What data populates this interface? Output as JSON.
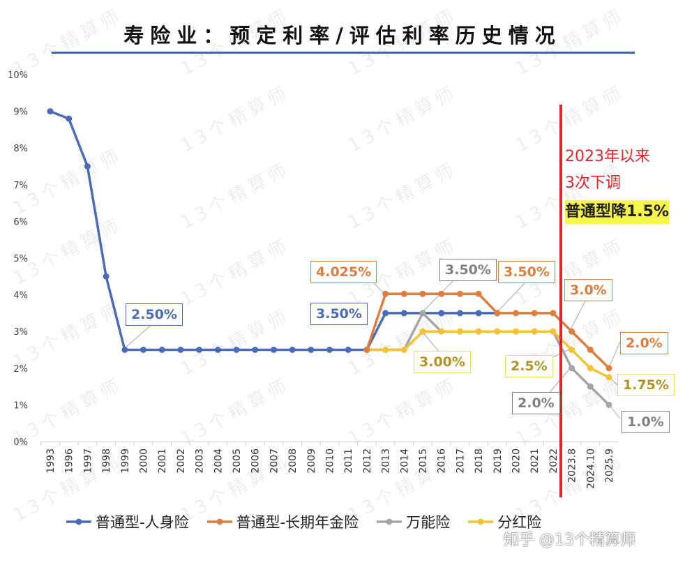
{
  "watermark": "13个精算师",
  "footer_credit": "知乎 @13个精算师",
  "annotations": [
    "2023年以来",
    "3次下调",
    "普通型降1.5%"
  ],
  "colors": {
    "blue": "#4a6cb8",
    "orange": "#dd7e3f",
    "gray": "#a5a5a5",
    "yellow": "#f4c232",
    "marker_line": "#e0262a"
  },
  "data_labels": {
    "blue_1999": "2.50%",
    "blue_2013": "3.50%",
    "orange_2013": "4.025%",
    "gray_2015": "3.50%",
    "yellow_2015": "3.00%",
    "orange_2019": "3.50%",
    "orange_2023": "3.0%",
    "yellow_2023": "2.5%",
    "gray_2023": "2.0%",
    "orange_2025": "2.0%",
    "yellow_2025": "1.75%",
    "gray_2025": "1.0%"
  },
  "chart_data": {
    "type": "line",
    "title": "寿险业：预定利率/评估利率历史情况",
    "xlabel": "",
    "ylabel": "",
    "ylim": [
      0,
      10
    ],
    "yticks": [
      "0%",
      "1%",
      "2%",
      "3%",
      "4%",
      "5%",
      "6%",
      "7%",
      "8%",
      "9%",
      "10%"
    ],
    "grid": false,
    "legend": "bottom",
    "categories": [
      "1993",
      "1996",
      "1997",
      "1998",
      "1999",
      "2000",
      "2001",
      "2002",
      "2003",
      "2004",
      "2005",
      "2006",
      "2007",
      "2008",
      "2009",
      "2010",
      "2011",
      "2012",
      "2013",
      "2014",
      "2015",
      "2016",
      "2017",
      "2018",
      "2019",
      "2020",
      "2021",
      "2022",
      "2023.8",
      "2024.10",
      "2025.9"
    ],
    "series": [
      {
        "name": "普通型-人身险",
        "color": "#4a6cb8",
        "values": [
          9.0,
          8.8,
          7.5,
          4.5,
          2.5,
          2.5,
          2.5,
          2.5,
          2.5,
          2.5,
          2.5,
          2.5,
          2.5,
          2.5,
          2.5,
          2.5,
          2.5,
          2.5,
          3.5,
          3.5,
          3.5,
          3.5,
          3.5,
          3.5,
          3.5,
          null,
          null,
          null,
          null,
          null,
          null
        ]
      },
      {
        "name": "普通型-长期年金险",
        "color": "#dd7e3f",
        "values": [
          null,
          null,
          null,
          null,
          null,
          null,
          null,
          null,
          null,
          null,
          null,
          null,
          null,
          null,
          null,
          null,
          null,
          2.5,
          4.025,
          4.025,
          4.025,
          4.025,
          4.025,
          4.025,
          3.5,
          3.5,
          3.5,
          3.5,
          3.0,
          2.5,
          2.0
        ]
      },
      {
        "name": "万能险",
        "color": "#a5a5a5",
        "values": [
          null,
          null,
          null,
          null,
          null,
          null,
          null,
          null,
          null,
          null,
          null,
          null,
          null,
          null,
          null,
          null,
          null,
          2.5,
          2.5,
          2.5,
          3.5,
          3.0,
          3.0,
          3.0,
          3.0,
          3.0,
          3.0,
          3.0,
          2.0,
          1.5,
          1.0
        ]
      },
      {
        "name": "分红险",
        "color": "#f4c232",
        "values": [
          null,
          null,
          null,
          null,
          null,
          null,
          null,
          null,
          null,
          null,
          null,
          null,
          null,
          null,
          null,
          null,
          null,
          2.5,
          2.5,
          2.5,
          3.0,
          3.0,
          3.0,
          3.0,
          3.0,
          3.0,
          3.0,
          3.0,
          2.5,
          2.0,
          1.75
        ]
      }
    ]
  }
}
